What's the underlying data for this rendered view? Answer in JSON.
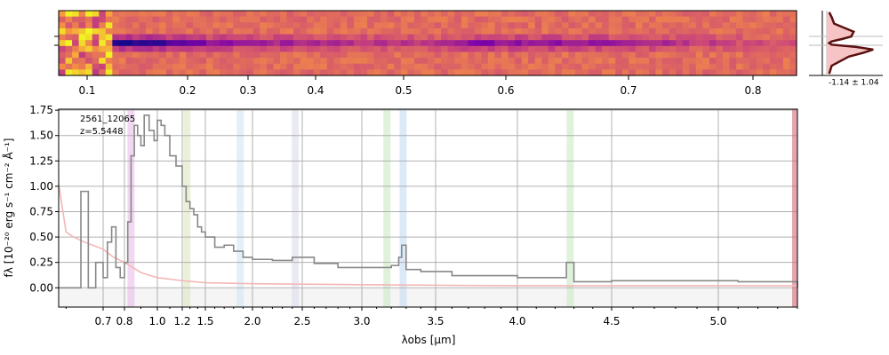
{
  "chart_data": [
    {
      "type": "heatmap",
      "panel": "2D spectrum",
      "colormap": "plasma",
      "x_ticks": [
        "0.1",
        "0.2",
        "0.3",
        "0.4",
        "0.5",
        "0.6",
        "0.7",
        "0.8"
      ],
      "trace_wavelengths_um": [
        0.85,
        1.0,
        1.2,
        1.4,
        1.6,
        2.0,
        2.5,
        3.0,
        3.27,
        4.26,
        5.0,
        5.3
      ],
      "trace_brightness": [
        0.9,
        1.0,
        0.95,
        0.7,
        0.55,
        0.45,
        0.35,
        0.3,
        0.6,
        0.5,
        0.2,
        0.15
      ]
    },
    {
      "type": "line",
      "panel": "spatial profile",
      "label": "-1.14 ± 1.04",
      "profile_x": [
        0.05,
        0.1,
        0.15,
        0.55,
        0.5,
        0.3,
        0.1,
        0.05,
        0.1,
        0.6,
        0.95,
        0.75,
        0.45,
        0.1,
        0.05
      ],
      "profile_y": [
        -0.95,
        -0.8,
        -0.6,
        -0.35,
        -0.2,
        -0.12,
        -0.05,
        0.0,
        0.05,
        0.12,
        0.2,
        0.3,
        0.42,
        0.7,
        0.95
      ]
    },
    {
      "type": "line",
      "panel": "1D spectrum",
      "annotation": [
        "2561_12065",
        "z=5.5448"
      ],
      "xlabel": "λobs [μm]",
      "ylabel": "fλ [10⁻²⁰ erg s⁻¹ cm⁻² Å⁻¹]",
      "ylim": [
        -0.19,
        1.76
      ],
      "x_ticks": [
        "0.7",
        "0.8",
        "1.0",
        "1.2",
        "1.5",
        "2.0",
        "2.5",
        "3.0",
        "3.5",
        "4.0",
        "4.5",
        "5.0"
      ],
      "y_ticks": [
        "0.00",
        "0.25",
        "0.50",
        "0.75",
        "1.00",
        "1.25",
        "1.50",
        "1.75"
      ],
      "line_bands_um": [
        0.84,
        1.26,
        1.87,
        2.43,
        3.17,
        3.28,
        4.28
      ],
      "series": [
        {
          "color": "#888888",
          "x": [
            0.58,
            0.62,
            0.64,
            0.66,
            0.68,
            0.7,
            0.72,
            0.74,
            0.76,
            0.78,
            0.8,
            0.82,
            0.84,
            0.86,
            0.88,
            0.9,
            0.92,
            0.95,
            0.98,
            1.0,
            1.03,
            1.06,
            1.1,
            1.15,
            1.2,
            1.25,
            1.3,
            1.35,
            1.4,
            1.45,
            1.5,
            1.6,
            1.7,
            1.8,
            1.9,
            2.0,
            2.2,
            2.4,
            2.6,
            2.8,
            3.0,
            3.1,
            3.2,
            3.25,
            3.27,
            3.3,
            3.4,
            3.6,
            3.8,
            4.0,
            4.2,
            4.26,
            4.3,
            4.5,
            4.7,
            4.9,
            5.1,
            5.3,
            5.4
          ],
          "y": [
            0.0,
            0.0,
            0.95,
            0.0,
            0.25,
            0.1,
            0.45,
            0.6,
            0.2,
            0.1,
            0.25,
            0.65,
            1.3,
            1.6,
            1.5,
            1.4,
            1.7,
            1.55,
            1.45,
            1.65,
            1.6,
            1.5,
            1.3,
            1.2,
            1.0,
            0.85,
            0.78,
            0.72,
            0.6,
            0.55,
            0.5,
            0.4,
            0.42,
            0.36,
            0.3,
            0.28,
            0.27,
            0.3,
            0.24,
            0.2,
            0.2,
            0.2,
            0.22,
            0.3,
            0.42,
            0.18,
            0.16,
            0.12,
            0.12,
            0.1,
            0.1,
            0.25,
            0.06,
            0.07,
            0.07,
            0.07,
            0.06,
            0.06,
            0.0
          ]
        },
        {
          "color": "#f4b6b6",
          "x": [
            0.58,
            0.6,
            0.62,
            0.65,
            0.7,
            0.75,
            0.8,
            0.85,
            0.9,
            1.0,
            1.2,
            1.5,
            2.0,
            3.0,
            4.0,
            5.0,
            5.4
          ],
          "y": [
            1.02,
            0.55,
            0.5,
            0.45,
            0.38,
            0.3,
            0.25,
            0.2,
            0.15,
            0.1,
            0.07,
            0.05,
            0.04,
            0.03,
            0.02,
            0.02,
            0.02
          ]
        }
      ]
    }
  ]
}
